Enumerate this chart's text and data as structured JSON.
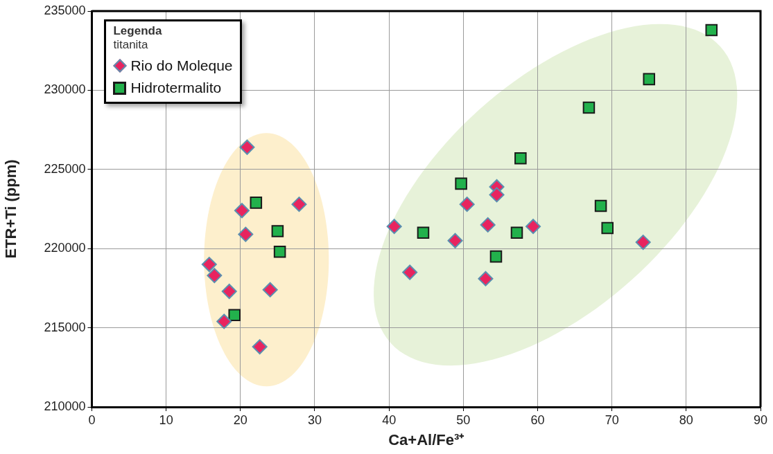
{
  "chart_data": {
    "type": "scatter",
    "xlabel": "Ca+Al/Fe³⁺",
    "ylabel": "ETR+Ti (ppm)",
    "legend_title": "Legenda\ntitanita",
    "legend": "top left",
    "grid": true,
    "xlim": [
      0,
      90
    ],
    "xticks": [
      0,
      10,
      20,
      30,
      40,
      50,
      60,
      70,
      80,
      90
    ],
    "ylim": [
      210000,
      235000
    ],
    "yticks": [
      210000,
      215000,
      220000,
      225000,
      230000,
      235000
    ],
    "series": [
      {
        "name": "Rio do Moleque",
        "color": "#e8245f",
        "marker": "diamond",
        "x": [
          20.9,
          20.2,
          27.9,
          20.7,
          15.8,
          16.5,
          18.5,
          24,
          17.8,
          22.6,
          40.7,
          42.8,
          48.9,
          50.5,
          54.5,
          54.5,
          53.3,
          53,
          59.4,
          74.2
        ],
        "values": [
          226400,
          222400,
          222800,
          220900,
          219000,
          218300,
          217300,
          217400,
          215400,
          213800,
          221400,
          218500,
          220500,
          222800,
          223900,
          223400,
          221500,
          218100,
          221400,
          220400
        ]
      },
      {
        "name": "Hidrotermalito",
        "color": "#22b14c",
        "marker": "square",
        "x": [
          22.1,
          25,
          25.3,
          19.2,
          83.4,
          75,
          66.9,
          57.7,
          49.7,
          44.6,
          57.2,
          68.5,
          69.4,
          54.4
        ],
        "values": [
          222900,
          221100,
          219800,
          215800,
          233800,
          230700,
          228900,
          225700,
          224100,
          221000,
          221000,
          222700,
          221300,
          219500
        ]
      }
    ]
  }
}
